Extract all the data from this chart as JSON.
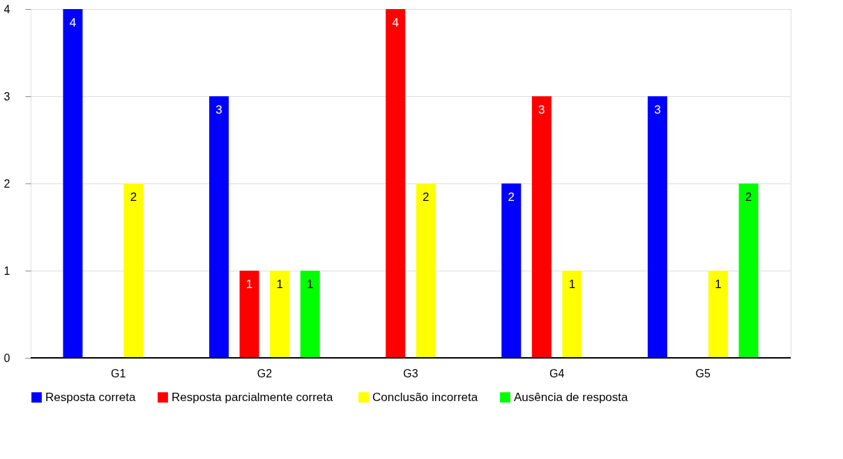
{
  "chart_data": {
    "type": "bar",
    "categories": [
      "G1",
      "G2",
      "G3",
      "G4",
      "G5"
    ],
    "series": [
      {
        "name": "Resposta correta",
        "color": "#0000ff",
        "values": [
          4,
          3,
          null,
          2,
          3
        ]
      },
      {
        "name": "Resposta  parcialmente correta",
        "color": "#ff0000",
        "values": [
          null,
          1,
          4,
          3,
          null
        ]
      },
      {
        "name": "Conclusão incorreta",
        "color": "#ffff00",
        "values": [
          2,
          1,
          2,
          1,
          1
        ]
      },
      {
        "name": "Ausência de resposta",
        "color": "#00ff00",
        "values": [
          null,
          1,
          null,
          null,
          2
        ]
      }
    ],
    "ylim": [
      0,
      4
    ],
    "yticks": [
      0,
      1,
      2,
      3,
      4
    ],
    "grid": "y",
    "legend": "bottom",
    "data_labels": true
  }
}
